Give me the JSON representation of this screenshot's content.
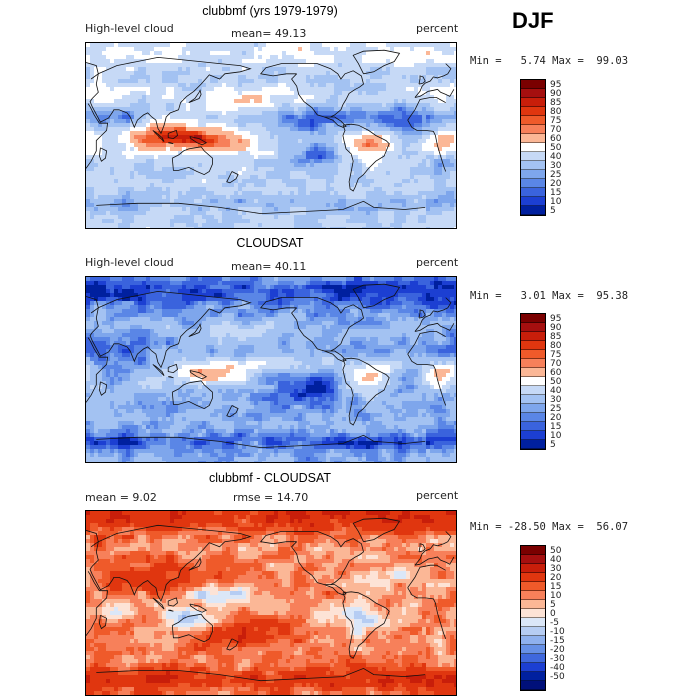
{
  "season": "DJF",
  "panels": [
    {
      "id": "model",
      "title": "clubbmf (yrs 1979-1979)",
      "left_label": "High-level cloud",
      "stat_label": "mean=  49.13",
      "units": "percent",
      "minmax": "Min =   5.74 Max =  99.03",
      "field_type": "model",
      "colorbar": {
        "labels": [
          "95",
          "90",
          "85",
          "80",
          "75",
          "70",
          "60",
          "50",
          "40",
          "30",
          "25",
          "20",
          "15",
          "10",
          "5"
        ],
        "colors": [
          "#7a0000",
          "#a50f0f",
          "#c81e0a",
          "#e0360f",
          "#ef5a2a",
          "#f7805a",
          "#fbb796",
          "#ffffff",
          "#c6d9f6",
          "#a3c2f2",
          "#7ea6ec",
          "#5a86e6",
          "#3a63dd",
          "#1c3fd2",
          "#00209f"
        ]
      }
    },
    {
      "id": "obs",
      "title": "CLOUDSAT",
      "left_label": "High-level cloud",
      "stat_label": "mean=  40.11",
      "units": "percent",
      "minmax": "Min =   3.01 Max =  95.38",
      "field_type": "obs",
      "colorbar": {
        "labels": [
          "95",
          "90",
          "85",
          "80",
          "75",
          "70",
          "60",
          "50",
          "40",
          "30",
          "25",
          "20",
          "15",
          "10",
          "5"
        ],
        "colors": [
          "#7a0000",
          "#a50f0f",
          "#c81e0a",
          "#e0360f",
          "#ef5a2a",
          "#f7805a",
          "#fbb796",
          "#ffffff",
          "#c6d9f6",
          "#a3c2f2",
          "#7ea6ec",
          "#5a86e6",
          "#3a63dd",
          "#1c3fd2",
          "#00209f"
        ]
      }
    },
    {
      "id": "diff",
      "title": "clubbmf - CLOUDSAT",
      "left_label": "mean =   9.02",
      "stat_label": "rmse =  14.70",
      "units": "percent",
      "minmax": "Min = -28.50 Max =  56.07",
      "field_type": "diff",
      "colorbar": {
        "labels": [
          "50",
          "40",
          "30",
          "20",
          "15",
          "10",
          "5",
          "0",
          "-5",
          "-10",
          "-15",
          "-20",
          "-30",
          "-40",
          "-50"
        ],
        "colors": [
          "#7a0000",
          "#a50f0f",
          "#c81e0a",
          "#e0360f",
          "#ef5a2a",
          "#f7805a",
          "#fbb796",
          "#fde3d6",
          "#dbe7f8",
          "#b6cdf3",
          "#8fb1ee",
          "#6690e6",
          "#3f68dd",
          "#1c3fd2",
          "#00209f",
          "#00107a"
        ]
      }
    }
  ]
}
